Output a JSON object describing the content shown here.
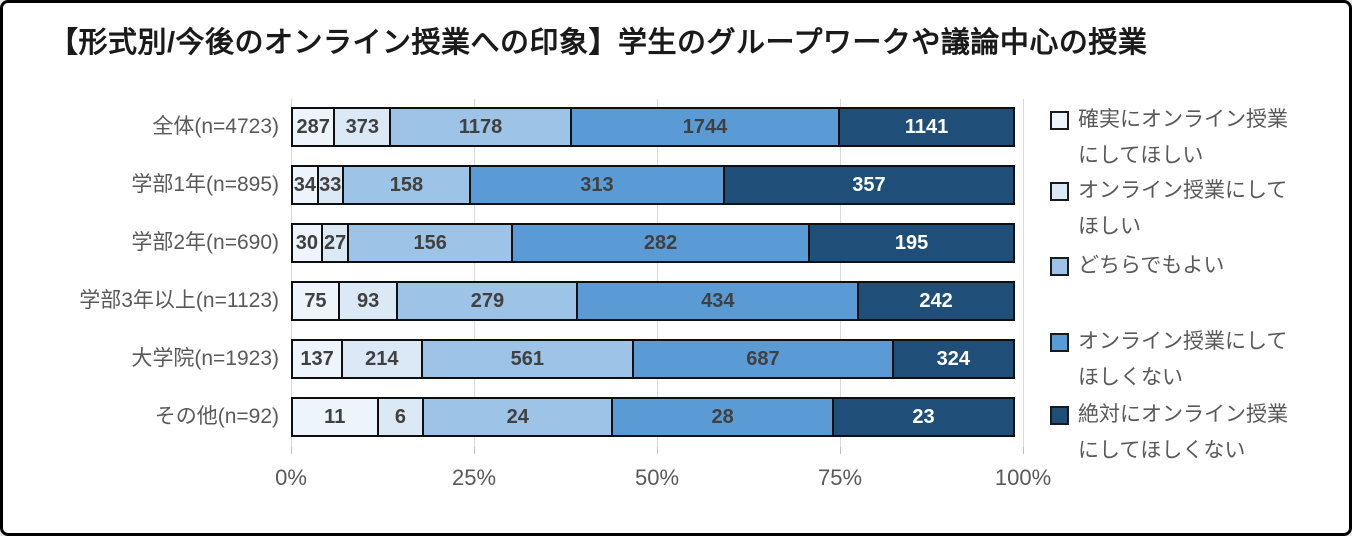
{
  "title": "【形式別/今後のオンライン授業への印象】学生のグループワークや議論中心の授業",
  "colors": {
    "background": "#ffffff",
    "frame_border": "#000000",
    "grid": "#d9d9d9",
    "axis_text": "#595959",
    "bar_border": "#0f0f0f",
    "value_text": "#404040",
    "value_text_on_dark": "#ffffff"
  },
  "chart_data": {
    "type": "bar",
    "stacked": true,
    "orientation": "horizontal",
    "title": "【形式別/今後のオンライン授業への印象】学生のグループワークや議論中心の授業",
    "note": "segment widths are percentages of each row total; data labels show raw counts",
    "categories": [
      "全体(n=4723)",
      "学部1年(n=895)",
      "学部2年(n=690)",
      "学部3年以上(n=1123)",
      "大学院(n=1923)",
      "その他(n=92)"
    ],
    "series": [
      {
        "name": "確実にオンライン授業にしてほしい",
        "color": "#eef4fb",
        "label_color": "#404040",
        "values": [
          287,
          34,
          30,
          75,
          137,
          11
        ]
      },
      {
        "name": "オンライン授業にしてほしい",
        "color": "#dbe8f6",
        "label_color": "#404040",
        "values": [
          373,
          33,
          27,
          93,
          214,
          6
        ]
      },
      {
        "name": "どちらでもよい",
        "color": "#9dc3e6",
        "label_color": "#404040",
        "values": [
          1178,
          158,
          156,
          279,
          561,
          24
        ]
      },
      {
        "name": "オンライン授業にしてほしくない",
        "color": "#5b9bd5",
        "label_color": "#404040",
        "values": [
          1744,
          313,
          282,
          434,
          687,
          28
        ]
      },
      {
        "name": "絶対にオンライン授業にしてほしくない",
        "color": "#1f4e79",
        "label_color": "#ffffff",
        "values": [
          1141,
          357,
          195,
          242,
          324,
          23
        ]
      }
    ],
    "row_totals": [
      4723,
      895,
      690,
      1123,
      1923,
      92
    ],
    "x_axis": {
      "ticks": [
        "0%",
        "25%",
        "50%",
        "75%",
        "100%"
      ],
      "range": [
        0,
        100
      ],
      "gridlines": true
    },
    "legend_position": "right"
  },
  "legend": {
    "items": [
      {
        "line1": "確実にオンライン授業",
        "line2": "にしてほしい",
        "color": "#eef4fb"
      },
      {
        "line1": "オンライン授業にして",
        "line2": "ほしい",
        "color": "#dbe8f6"
      },
      {
        "line1": "どちらでもよい",
        "line2": "",
        "color": "#9dc3e6"
      },
      {
        "line1": "オンライン授業にして",
        "line2": "ほしくない",
        "color": "#5b9bd5"
      },
      {
        "line1": "絶対にオンライン授業",
        "line2": "にしてほしくない",
        "color": "#1f4e79"
      }
    ]
  }
}
